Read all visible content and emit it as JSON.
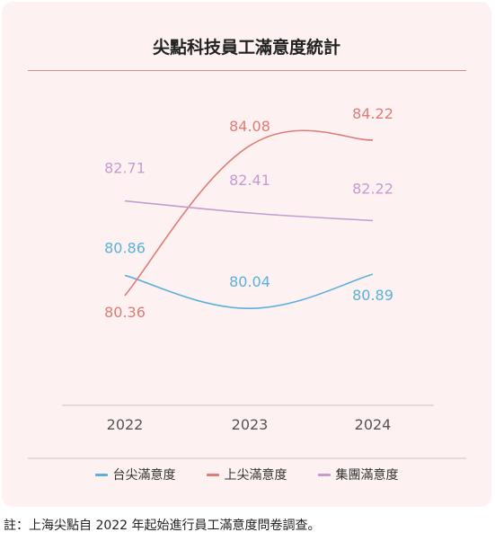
{
  "chart_data": {
    "type": "line",
    "title": "尖點科技員工滿意度統計",
    "x": [
      "2022",
      "2023",
      "2024"
    ],
    "series": [
      {
        "name": "台尖滿意度",
        "values": [
          80.86,
          80.04,
          80.89
        ],
        "value_labels": [
          "80.86",
          "80.04",
          "80.89"
        ],
        "color": "#5bb0dc"
      },
      {
        "name": "上尖滿意度",
        "values": [
          80.36,
          84.08,
          84.22
        ],
        "value_labels": [
          "80.36",
          "84.08",
          "84.22"
        ],
        "color": "#e07b75"
      },
      {
        "name": "集團滿意度",
        "values": [
          82.71,
          82.41,
          82.22
        ],
        "value_labels": [
          "82.71",
          "82.41",
          "82.22"
        ],
        "color": "#c79ad2"
      }
    ],
    "xlabel": "",
    "ylabel": "",
    "ylim": [
      79,
      84.5
    ],
    "grid": false,
    "legend_position": "bottom"
  },
  "footnote": "註：上海尖點自 2022 年起始進行員工滿意度問卷調查。"
}
